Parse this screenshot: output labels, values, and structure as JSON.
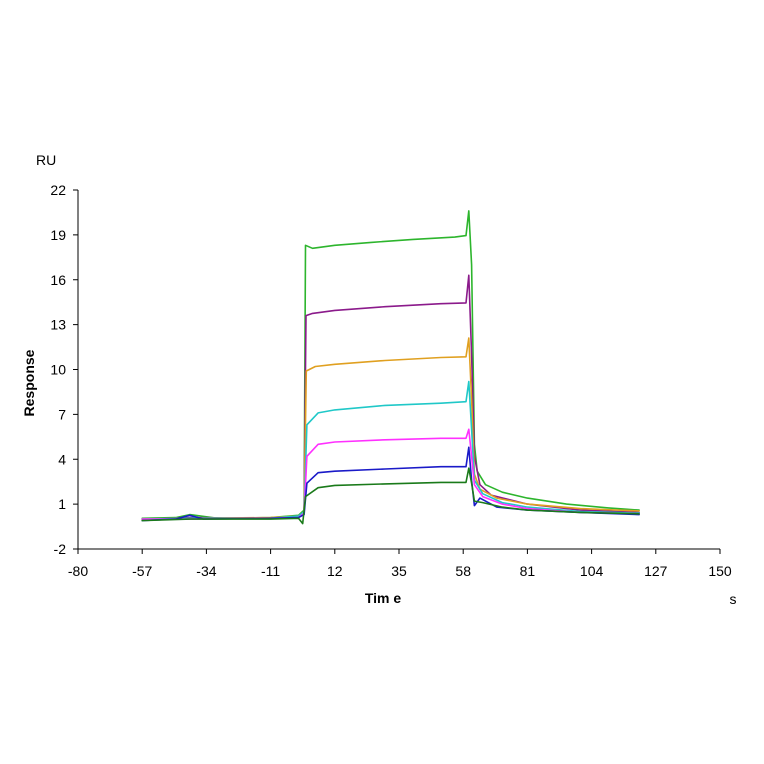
{
  "chart_data": {
    "type": "line",
    "title": "",
    "xlabel": "Tim e",
    "ylabel": "Response",
    "x_unit": "s",
    "y_unit": "RU",
    "xlim": [
      -80,
      150
    ],
    "ylim": [
      -2,
      22
    ],
    "x_ticks": [
      -80,
      -57,
      -34,
      -11,
      12,
      35,
      58,
      81,
      104,
      127,
      150
    ],
    "y_ticks": [
      -2,
      1,
      4,
      7,
      10,
      13,
      16,
      19,
      22
    ],
    "grid": false,
    "legend": "none",
    "series": [
      {
        "color": "#2db52d",
        "points": [
          [
            -57,
            0.05
          ],
          [
            -45,
            0.1
          ],
          [
            -40,
            0.3
          ],
          [
            -30,
            0.05
          ],
          [
            -11,
            0.1
          ],
          [
            -1,
            0.25
          ],
          [
            1,
            0.6
          ],
          [
            1.5,
            18.3
          ],
          [
            4,
            18.1
          ],
          [
            12,
            18.3
          ],
          [
            25,
            18.5
          ],
          [
            40,
            18.7
          ],
          [
            55,
            18.85
          ],
          [
            59,
            18.95
          ],
          [
            60,
            20.6
          ],
          [
            61,
            17
          ],
          [
            62,
            5
          ],
          [
            63,
            3.2
          ],
          [
            66,
            2.3
          ],
          [
            72,
            1.8
          ],
          [
            81,
            1.4
          ],
          [
            95,
            1.0
          ],
          [
            110,
            0.75
          ],
          [
            121,
            0.6
          ]
        ]
      },
      {
        "color": "#8b1a8b",
        "points": [
          [
            -57,
            -0.05
          ],
          [
            -40,
            0.1
          ],
          [
            -11,
            0.05
          ],
          [
            -1,
            0.2
          ],
          [
            1,
            0.5
          ],
          [
            1.7,
            13.6
          ],
          [
            4,
            13.75
          ],
          [
            12,
            13.95
          ],
          [
            30,
            14.2
          ],
          [
            50,
            14.4
          ],
          [
            59,
            14.45
          ],
          [
            60,
            16.3
          ],
          [
            61,
            11
          ],
          [
            62,
            4.2
          ],
          [
            64,
            2.3
          ],
          [
            68,
            1.6
          ],
          [
            81,
            1.0
          ],
          [
            100,
            0.6
          ],
          [
            121,
            0.45
          ]
        ]
      },
      {
        "color": "#e0a020",
        "points": [
          [
            -57,
            0.0
          ],
          [
            -40,
            0.05
          ],
          [
            -11,
            0.1
          ],
          [
            -1,
            0.2
          ],
          [
            1,
            0.5
          ],
          [
            1.8,
            9.9
          ],
          [
            5,
            10.2
          ],
          [
            12,
            10.35
          ],
          [
            30,
            10.6
          ],
          [
            50,
            10.8
          ],
          [
            59,
            10.85
          ],
          [
            60,
            12.1
          ],
          [
            61,
            8
          ],
          [
            62,
            3
          ],
          [
            64,
            2.0
          ],
          [
            70,
            1.4
          ],
          [
            81,
            1.0
          ],
          [
            100,
            0.7
          ],
          [
            121,
            0.55
          ]
        ]
      },
      {
        "color": "#20c8c8",
        "points": [
          [
            -57,
            0.0
          ],
          [
            -40,
            0.05
          ],
          [
            -11,
            0.05
          ],
          [
            -1,
            0.2
          ],
          [
            1,
            0.5
          ],
          [
            2,
            6.3
          ],
          [
            6,
            7.1
          ],
          [
            12,
            7.3
          ],
          [
            30,
            7.6
          ],
          [
            50,
            7.75
          ],
          [
            59,
            7.85
          ],
          [
            60,
            9.2
          ],
          [
            61,
            6
          ],
          [
            62,
            2.6
          ],
          [
            65,
            1.7
          ],
          [
            72,
            1.1
          ],
          [
            81,
            0.8
          ],
          [
            100,
            0.5
          ],
          [
            121,
            0.4
          ]
        ]
      },
      {
        "color": "#ff30ff",
        "points": [
          [
            -57,
            0.0
          ],
          [
            -40,
            0.0
          ],
          [
            -11,
            0.05
          ],
          [
            -1,
            0.1
          ],
          [
            1,
            0.4
          ],
          [
            2,
            4.2
          ],
          [
            6,
            5.0
          ],
          [
            12,
            5.15
          ],
          [
            30,
            5.3
          ],
          [
            50,
            5.4
          ],
          [
            59,
            5.4
          ],
          [
            60,
            6.0
          ],
          [
            61,
            4.2
          ],
          [
            62,
            2.3
          ],
          [
            65,
            1.5
          ],
          [
            72,
            1.0
          ],
          [
            81,
            0.7
          ],
          [
            100,
            0.45
          ],
          [
            121,
            0.35
          ]
        ]
      },
      {
        "color": "#1a1ac8",
        "points": [
          [
            -57,
            -0.1
          ],
          [
            -45,
            0.0
          ],
          [
            -40,
            0.25
          ],
          [
            -35,
            0.0
          ],
          [
            -11,
            0.05
          ],
          [
            -1,
            0.1
          ],
          [
            1,
            0.3
          ],
          [
            2,
            2.4
          ],
          [
            6,
            3.1
          ],
          [
            12,
            3.2
          ],
          [
            30,
            3.35
          ],
          [
            50,
            3.5
          ],
          [
            59,
            3.5
          ],
          [
            60,
            4.8
          ],
          [
            61,
            2.6
          ],
          [
            62,
            0.9
          ],
          [
            64,
            1.4
          ],
          [
            70,
            0.8
          ],
          [
            81,
            0.6
          ],
          [
            100,
            0.45
          ],
          [
            121,
            0.3
          ]
        ]
      },
      {
        "color": "#1a7a1a",
        "points": [
          [
            -57,
            -0.1
          ],
          [
            -40,
            0.0
          ],
          [
            -11,
            0.0
          ],
          [
            -1,
            0.05
          ],
          [
            0.5,
            -0.3
          ],
          [
            1.5,
            1.5
          ],
          [
            6,
            2.1
          ],
          [
            12,
            2.25
          ],
          [
            30,
            2.35
          ],
          [
            50,
            2.45
          ],
          [
            59,
            2.45
          ],
          [
            60,
            3.4
          ],
          [
            61,
            2.4
          ],
          [
            62,
            1.2
          ],
          [
            65,
            1.1
          ],
          [
            72,
            0.8
          ],
          [
            81,
            0.6
          ],
          [
            100,
            0.45
          ],
          [
            121,
            0.35
          ]
        ]
      }
    ]
  }
}
